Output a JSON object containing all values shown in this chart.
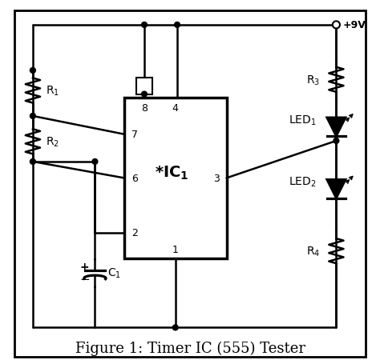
{
  "title": "Figure 1: Timer IC (555) Tester",
  "bg_color": "#ffffff",
  "line_color": "#000000",
  "title_fontsize": 13,
  "label_fontsize": 11
}
